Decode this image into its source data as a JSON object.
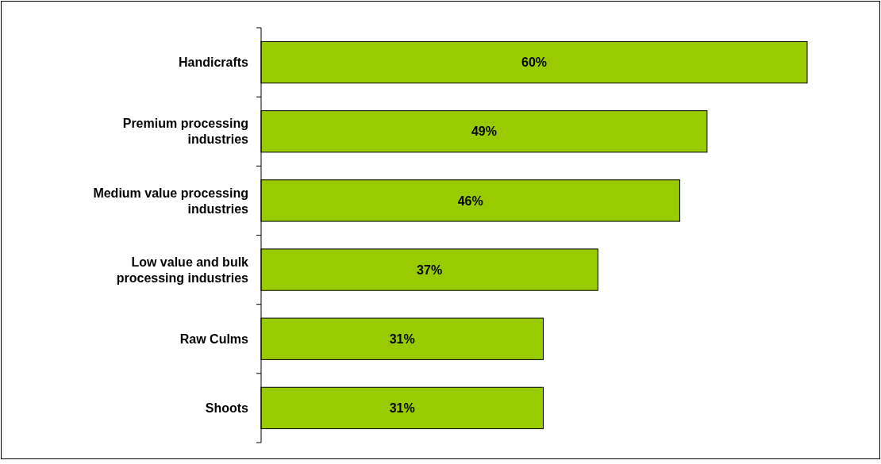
{
  "chart_data": {
    "type": "bar",
    "orientation": "horizontal",
    "categories": [
      "Handicrafts",
      "Premium processing industries",
      "Medium value processing industries",
      "Low value and bulk processing industries",
      "Raw Culms",
      "Shoots"
    ],
    "values": [
      60,
      49,
      46,
      37,
      31,
      31
    ],
    "value_labels": [
      "60%",
      "49%",
      "46%",
      "37%",
      "31%",
      "31%"
    ],
    "color": "#99cc00"
  }
}
